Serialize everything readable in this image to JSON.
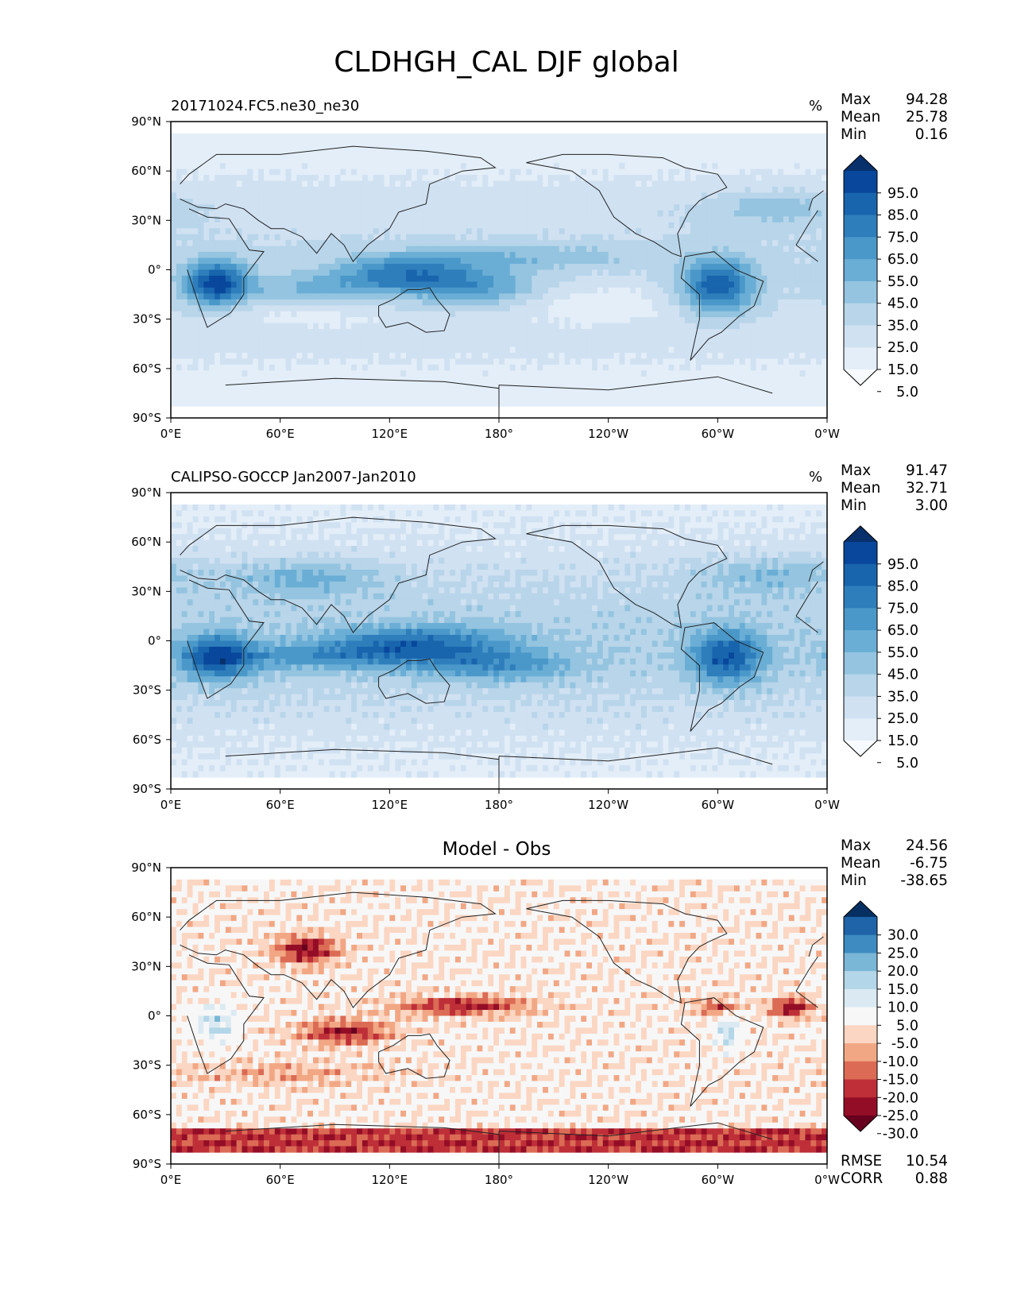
{
  "figure": {
    "title": "CLDHGH_CAL DJF global"
  },
  "axes": {
    "lat_ticks": [
      "90°N",
      "60°N",
      "30°N",
      "0°",
      "30°S",
      "60°S",
      "90°S"
    ],
    "lon_ticks": [
      "0°E",
      "60°E",
      "120°E",
      "180°",
      "120°W",
      "60°W",
      "0°W"
    ]
  },
  "panels": [
    {
      "title": "20171024.FC5.ne30_ne30",
      "units": "%",
      "stats": [
        {
          "label": "Max",
          "value": "94.28"
        },
        {
          "label": "Mean",
          "value": "25.78"
        },
        {
          "label": "Min",
          "value": "0.16"
        }
      ],
      "colorbar": {
        "labels": [
          "95.0",
          "85.0",
          "75.0",
          "65.0",
          "55.0",
          "45.0",
          "35.0",
          "25.0",
          "15.0",
          "5.0"
        ],
        "colors": [
          "#08306b",
          "#08479b",
          "#1865ad",
          "#2f7ebc",
          "#4a98c9",
          "#6aaed6",
          "#94c4df",
          "#b8d5ea",
          "#d0e1f2",
          "#e3eef8",
          "#f7fbff"
        ]
      },
      "field": "model"
    },
    {
      "title": "CALIPSO-GOCCP Jan2007-Jan2010",
      "units": "%",
      "stats": [
        {
          "label": "Max",
          "value": "91.47"
        },
        {
          "label": "Mean",
          "value": "32.71"
        },
        {
          "label": "Min",
          "value": "3.00"
        }
      ],
      "colorbar": {
        "labels": [
          "95.0",
          "85.0",
          "75.0",
          "65.0",
          "55.0",
          "45.0",
          "35.0",
          "25.0",
          "15.0",
          "5.0"
        ],
        "colors": [
          "#08306b",
          "#08479b",
          "#1865ad",
          "#2f7ebc",
          "#4a98c9",
          "#6aaed6",
          "#94c4df",
          "#b8d5ea",
          "#d0e1f2",
          "#e3eef8",
          "#f7fbff"
        ]
      },
      "field": "obs"
    },
    {
      "title": "Model - Obs",
      "units": "",
      "stats": [
        {
          "label": "Max",
          "value": "24.56"
        },
        {
          "label": "Mean",
          "value": "-6.75"
        },
        {
          "label": "Min",
          "value": "-38.65"
        }
      ],
      "colorbar": {
        "labels": [
          "30.0",
          "25.0",
          "20.0",
          "15.0",
          "10.0",
          "5.0",
          "-5.0",
          "-10.0",
          "-15.0",
          "-20.0",
          "-25.0",
          "-30.0"
        ],
        "colors": [
          "#053061",
          "#1f63a8",
          "#3d8bc0",
          "#7ab6d6",
          "#b3d6e8",
          "#dbeaf2",
          "#f7f7f7",
          "#fbd6c2",
          "#f2a784",
          "#db6b55",
          "#be2f38",
          "#930d26",
          "#67001f"
        ]
      },
      "field": "diff",
      "extra_stats": [
        {
          "label": "RMSE",
          "value": "10.54"
        },
        {
          "label": "CORR",
          "value": "0.88"
        }
      ]
    }
  ]
}
